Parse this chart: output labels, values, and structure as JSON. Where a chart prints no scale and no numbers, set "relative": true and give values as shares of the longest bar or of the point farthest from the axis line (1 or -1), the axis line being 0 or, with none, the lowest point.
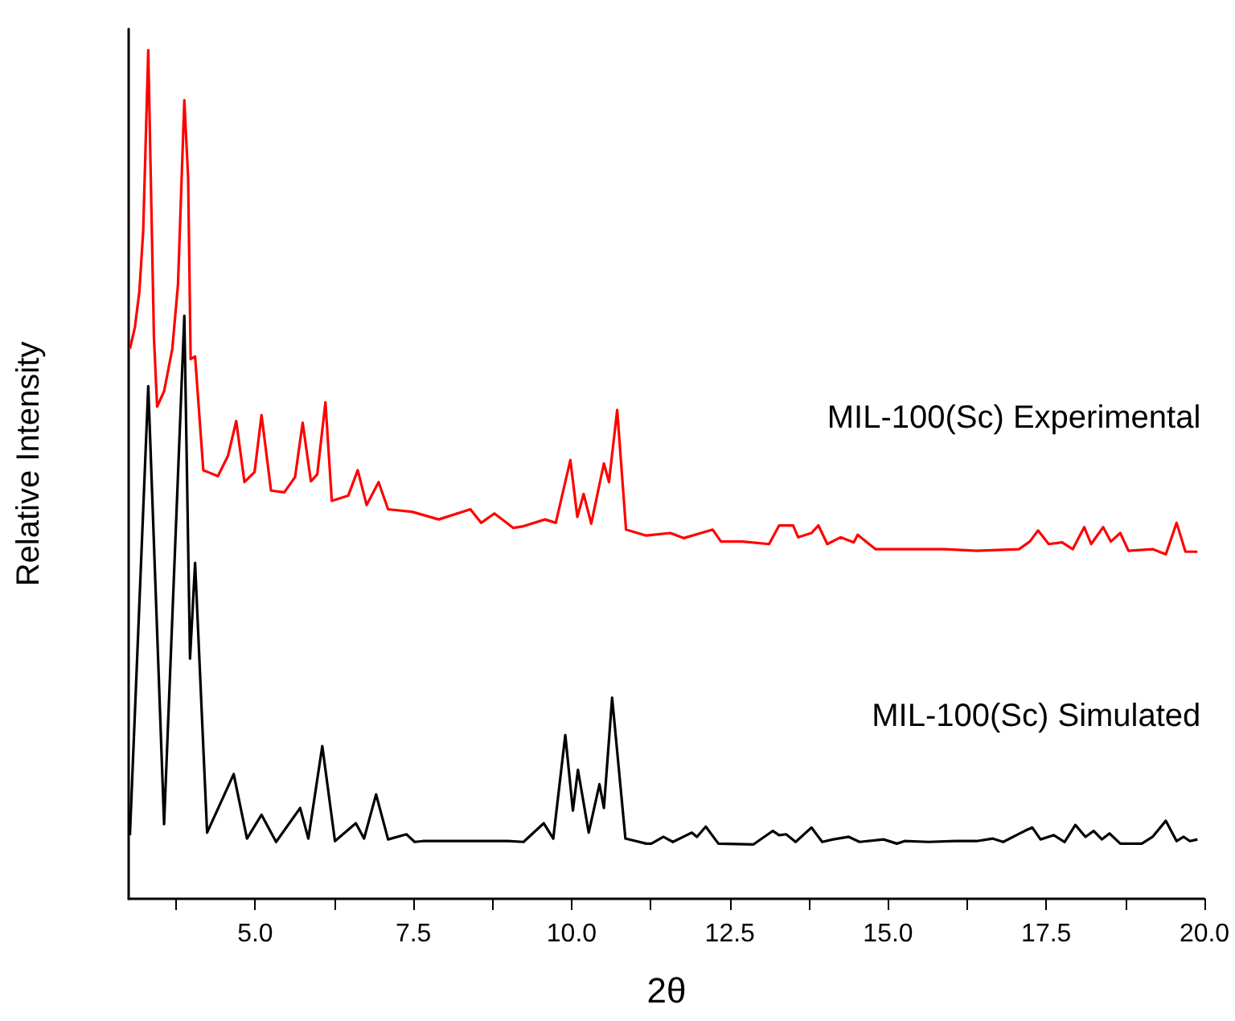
{
  "chart_data": {
    "type": "line",
    "relative": true,
    "xlabel": "2θ",
    "ylabel": "Relative Intensity",
    "xlim": [
      3,
      20
    ],
    "xticks": [
      {
        "value": 3.75,
        "label": null
      },
      {
        "value": 5,
        "label": "5.0"
      },
      {
        "value": 6.25,
        "label": null
      },
      {
        "value": 7.5,
        "label": "7.5"
      },
      {
        "value": 8.75,
        "label": null
      },
      {
        "value": 10,
        "label": "10.0"
      },
      {
        "value": 11.25,
        "label": null
      },
      {
        "value": 12.5,
        "label": "12.5"
      },
      {
        "value": 13.75,
        "label": null
      },
      {
        "value": 15,
        "label": "15.0"
      },
      {
        "value": 16.25,
        "label": null
      },
      {
        "value": 17.5,
        "label": "17.5"
      },
      {
        "value": 18.75,
        "label": null
      },
      {
        "value": 20,
        "label": "20.0"
      }
    ],
    "tick_labels": "x",
    "grid": false,
    "legend": false,
    "marker": "none",
    "line_style": "solid",
    "series": [
      {
        "name": "MIL-100(Sc) Experimental",
        "color": "#ff0000",
        "x": [
          3.02,
          3.1,
          3.17,
          3.23,
          3.31,
          3.4,
          3.45,
          3.56,
          3.69,
          3.78,
          3.88,
          3.94,
          3.98,
          4.05,
          4.18,
          4.41,
          4.57,
          4.7,
          4.83,
          4.99,
          5.1,
          5.25,
          5.46,
          5.63,
          5.75,
          5.88,
          5.98,
          6.11,
          6.21,
          6.47,
          6.62,
          6.76,
          6.95,
          7.1,
          7.48,
          7.9,
          8.4,
          8.57,
          8.78,
          9.08,
          9.24,
          9.58,
          9.75,
          9.98,
          10.09,
          10.19,
          10.31,
          10.51,
          10.59,
          10.72,
          10.86,
          11.18,
          11.56,
          11.77,
          12.23,
          12.36,
          12.7,
          13.12,
          13.28,
          13.5,
          13.58,
          13.79,
          13.9,
          14.04,
          14.25,
          14.46,
          14.52,
          14.8,
          15.39,
          15.9,
          16.4,
          17.07,
          17.24,
          17.37,
          17.54,
          17.75,
          17.92,
          18.1,
          18.21,
          18.4,
          18.52,
          18.67,
          18.8,
          19.18,
          19.39,
          19.56,
          19.7,
          19.89
        ],
        "values": [
          0.648,
          0.674,
          0.716,
          0.787,
          1.0,
          0.661,
          0.58,
          0.598,
          0.648,
          0.724,
          0.941,
          0.85,
          0.636,
          0.639,
          0.505,
          0.498,
          0.522,
          0.563,
          0.491,
          0.503,
          0.57,
          0.481,
          0.479,
          0.497,
          0.561,
          0.492,
          0.5,
          0.585,
          0.469,
          0.475,
          0.505,
          0.464,
          0.491,
          0.459,
          0.456,
          0.447,
          0.459,
          0.443,
          0.454,
          0.437,
          0.439,
          0.447,
          0.443,
          0.517,
          0.45,
          0.477,
          0.442,
          0.513,
          0.491,
          0.576,
          0.435,
          0.428,
          0.431,
          0.425,
          0.435,
          0.421,
          0.421,
          0.418,
          0.44,
          0.44,
          0.426,
          0.431,
          0.44,
          0.418,
          0.426,
          0.42,
          0.429,
          0.412,
          0.412,
          0.412,
          0.41,
          0.412,
          0.421,
          0.434,
          0.418,
          0.42,
          0.412,
          0.438,
          0.418,
          0.438,
          0.421,
          0.431,
          0.41,
          0.412,
          0.406,
          0.443,
          0.409,
          0.409
        ]
      },
      {
        "name": "MIL-100(Sc) Simulated",
        "color": "#000000",
        "x": [
          3.02,
          3.31,
          3.56,
          3.88,
          3.97,
          4.05,
          4.24,
          4.66,
          4.87,
          5.1,
          5.33,
          5.71,
          5.84,
          6.06,
          6.26,
          6.59,
          6.72,
          6.91,
          7.1,
          7.39,
          7.52,
          7.65,
          8.32,
          8.99,
          9.24,
          9.56,
          9.71,
          9.9,
          10.02,
          10.1,
          10.27,
          10.44,
          10.51,
          10.64,
          10.85,
          11.18,
          11.26,
          11.45,
          11.6,
          11.9,
          11.98,
          12.12,
          12.32,
          12.87,
          13.18,
          13.28,
          13.39,
          13.54,
          13.79,
          13.96,
          14.13,
          14.38,
          14.55,
          14.93,
          15.14,
          15.26,
          15.64,
          16.06,
          16.4,
          16.65,
          16.82,
          17.16,
          17.28,
          17.41,
          17.62,
          17.79,
          17.96,
          18.12,
          18.25,
          18.38,
          18.5,
          18.67,
          19.01,
          19.18,
          19.39,
          19.56,
          19.67,
          19.77,
          19.89
        ],
        "values": [
          0.075,
          0.604,
          0.088,
          0.687,
          0.283,
          0.396,
          0.078,
          0.147,
          0.071,
          0.099,
          0.067,
          0.107,
          0.071,
          0.18,
          0.068,
          0.089,
          0.071,
          0.123,
          0.07,
          0.076,
          0.067,
          0.068,
          0.068,
          0.068,
          0.067,
          0.089,
          0.071,
          0.193,
          0.104,
          0.152,
          0.078,
          0.135,
          0.107,
          0.237,
          0.071,
          0.065,
          0.065,
          0.073,
          0.067,
          0.078,
          0.073,
          0.085,
          0.065,
          0.064,
          0.08,
          0.075,
          0.076,
          0.067,
          0.084,
          0.067,
          0.07,
          0.073,
          0.067,
          0.07,
          0.065,
          0.068,
          0.067,
          0.068,
          0.068,
          0.071,
          0.067,
          0.08,
          0.084,
          0.07,
          0.075,
          0.067,
          0.087,
          0.073,
          0.08,
          0.07,
          0.077,
          0.065,
          0.065,
          0.073,
          0.092,
          0.068,
          0.073,
          0.068,
          0.07
        ]
      }
    ]
  }
}
